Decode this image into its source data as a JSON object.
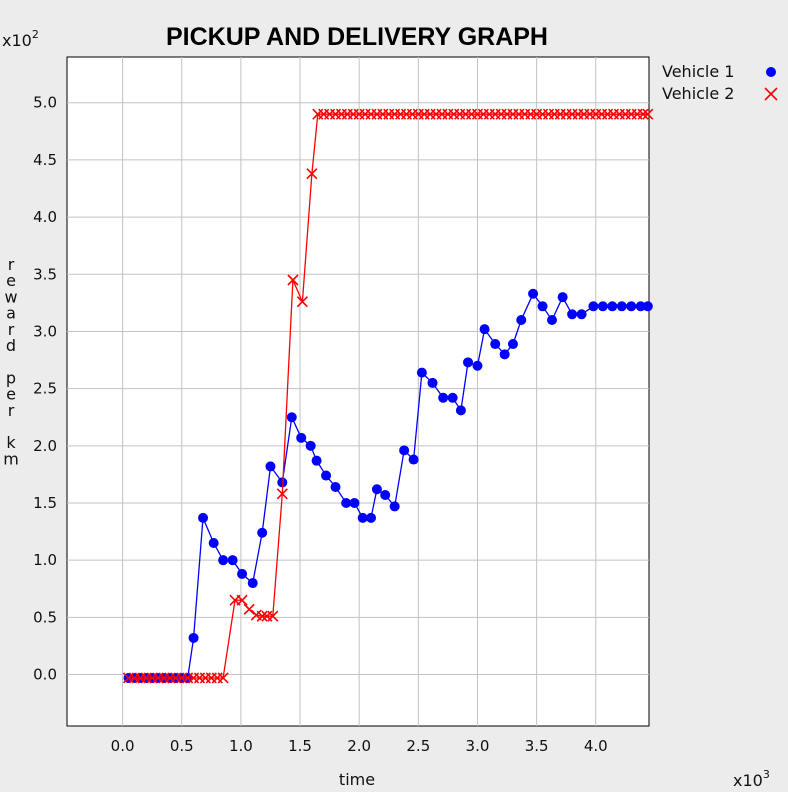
{
  "chart_data": {
    "type": "line",
    "title": "PICKUP AND DELIVERY GRAPH",
    "xlabel": "time",
    "ylabel": "reward per km",
    "x_multiplier": "x10",
    "x_multiplier_exp": "3",
    "y_multiplier": "x10",
    "y_multiplier_exp": "2",
    "xlim": [
      -0.47,
      4.45
    ],
    "ylim": [
      -0.45,
      5.4
    ],
    "x_ticks": [
      "0.0",
      "0.5",
      "1.0",
      "1.5",
      "2.0",
      "2.5",
      "3.0",
      "3.5",
      "4.0"
    ],
    "x_tick_values": [
      0,
      0.5,
      1,
      1.5,
      2,
      2.5,
      3,
      3.5,
      4
    ],
    "y_ticks": [
      "0.0",
      "0.5",
      "1.0",
      "1.5",
      "2.0",
      "2.5",
      "3.0",
      "3.5",
      "4.0",
      "4.5",
      "5.0"
    ],
    "y_tick_values": [
      0,
      0.5,
      1,
      1.5,
      2,
      2.5,
      3,
      3.5,
      4,
      4.5,
      5
    ],
    "grid": true,
    "legend_position": "top-right outside",
    "series": [
      {
        "name": "Vehicle 1",
        "color": "#0000ff",
        "marker": "circle",
        "x": [
          0.05,
          0.1,
          0.15,
          0.2,
          0.25,
          0.3,
          0.35,
          0.4,
          0.45,
          0.5,
          0.55,
          0.6,
          0.68,
          0.77,
          0.85,
          0.93,
          1.01,
          1.1,
          1.18,
          1.25,
          1.35,
          1.43,
          1.51,
          1.59,
          1.64,
          1.72,
          1.8,
          1.89,
          1.96,
          2.03,
          2.1,
          2.15,
          2.22,
          2.3,
          2.38,
          2.46,
          2.53,
          2.62,
          2.71,
          2.79,
          2.86,
          2.92,
          3.0,
          3.06,
          3.15,
          3.23,
          3.3,
          3.37,
          3.47,
          3.55,
          3.63,
          3.72,
          3.8,
          3.88,
          3.98,
          4.06,
          4.14,
          4.22,
          4.3,
          4.38,
          4.44
        ],
        "y": [
          -0.03,
          -0.03,
          -0.03,
          -0.03,
          -0.03,
          -0.03,
          -0.03,
          -0.03,
          -0.03,
          -0.03,
          -0.03,
          0.32,
          1.37,
          1.15,
          1.0,
          1.0,
          0.88,
          0.8,
          1.24,
          1.82,
          1.68,
          2.25,
          2.07,
          2.0,
          1.87,
          1.74,
          1.64,
          1.5,
          1.5,
          1.37,
          1.37,
          1.62,
          1.57,
          1.47,
          1.96,
          1.88,
          2.64,
          2.55,
          2.42,
          2.42,
          2.31,
          2.73,
          2.7,
          3.02,
          2.89,
          2.8,
          2.89,
          3.1,
          3.33,
          3.22,
          3.1,
          3.3,
          3.15,
          3.15,
          3.22,
          3.22,
          3.22,
          3.22,
          3.22,
          3.22,
          3.22
        ]
      },
      {
        "name": "Vehicle 2",
        "color": "#ff0000",
        "marker": "x",
        "x": [
          0.05,
          0.1,
          0.15,
          0.2,
          0.25,
          0.3,
          0.35,
          0.4,
          0.45,
          0.5,
          0.55,
          0.6,
          0.65,
          0.7,
          0.75,
          0.8,
          0.85,
          0.95,
          1.01,
          1.07,
          1.13,
          1.18,
          1.22,
          1.27,
          1.35,
          1.44,
          1.52,
          1.6,
          1.65,
          1.7,
          1.75,
          1.8,
          1.85,
          1.9,
          1.95,
          2.0,
          2.05,
          2.1,
          2.15,
          2.2,
          2.25,
          2.3,
          2.35,
          2.4,
          2.45,
          2.5,
          2.55,
          2.6,
          2.65,
          2.7,
          2.75,
          2.8,
          2.85,
          2.9,
          2.95,
          3.0,
          3.05,
          3.1,
          3.15,
          3.2,
          3.25,
          3.3,
          3.35,
          3.4,
          3.45,
          3.5,
          3.55,
          3.6,
          3.65,
          3.7,
          3.75,
          3.8,
          3.85,
          3.9,
          3.95,
          4.0,
          4.05,
          4.1,
          4.15,
          4.2,
          4.25,
          4.3,
          4.35,
          4.4,
          4.44
        ],
        "y": [
          -0.03,
          -0.03,
          -0.03,
          -0.03,
          -0.03,
          -0.03,
          -0.03,
          -0.03,
          -0.03,
          -0.03,
          -0.03,
          -0.03,
          -0.03,
          -0.03,
          -0.03,
          -0.03,
          -0.03,
          0.65,
          0.65,
          0.57,
          0.52,
          0.51,
          0.51,
          0.51,
          1.58,
          3.45,
          3.26,
          4.38,
          4.9,
          4.9,
          4.9,
          4.9,
          4.9,
          4.9,
          4.9,
          4.9,
          4.9,
          4.9,
          4.9,
          4.9,
          4.9,
          4.9,
          4.9,
          4.9,
          4.9,
          4.9,
          4.9,
          4.9,
          4.9,
          4.9,
          4.9,
          4.9,
          4.9,
          4.9,
          4.9,
          4.9,
          4.9,
          4.9,
          4.9,
          4.9,
          4.9,
          4.9,
          4.9,
          4.9,
          4.9,
          4.9,
          4.9,
          4.9,
          4.9,
          4.9,
          4.9,
          4.9,
          4.9,
          4.9,
          4.9,
          4.9,
          4.9,
          4.9,
          4.9,
          4.9,
          4.9,
          4.9,
          4.9,
          4.9,
          4.9
        ]
      }
    ]
  }
}
